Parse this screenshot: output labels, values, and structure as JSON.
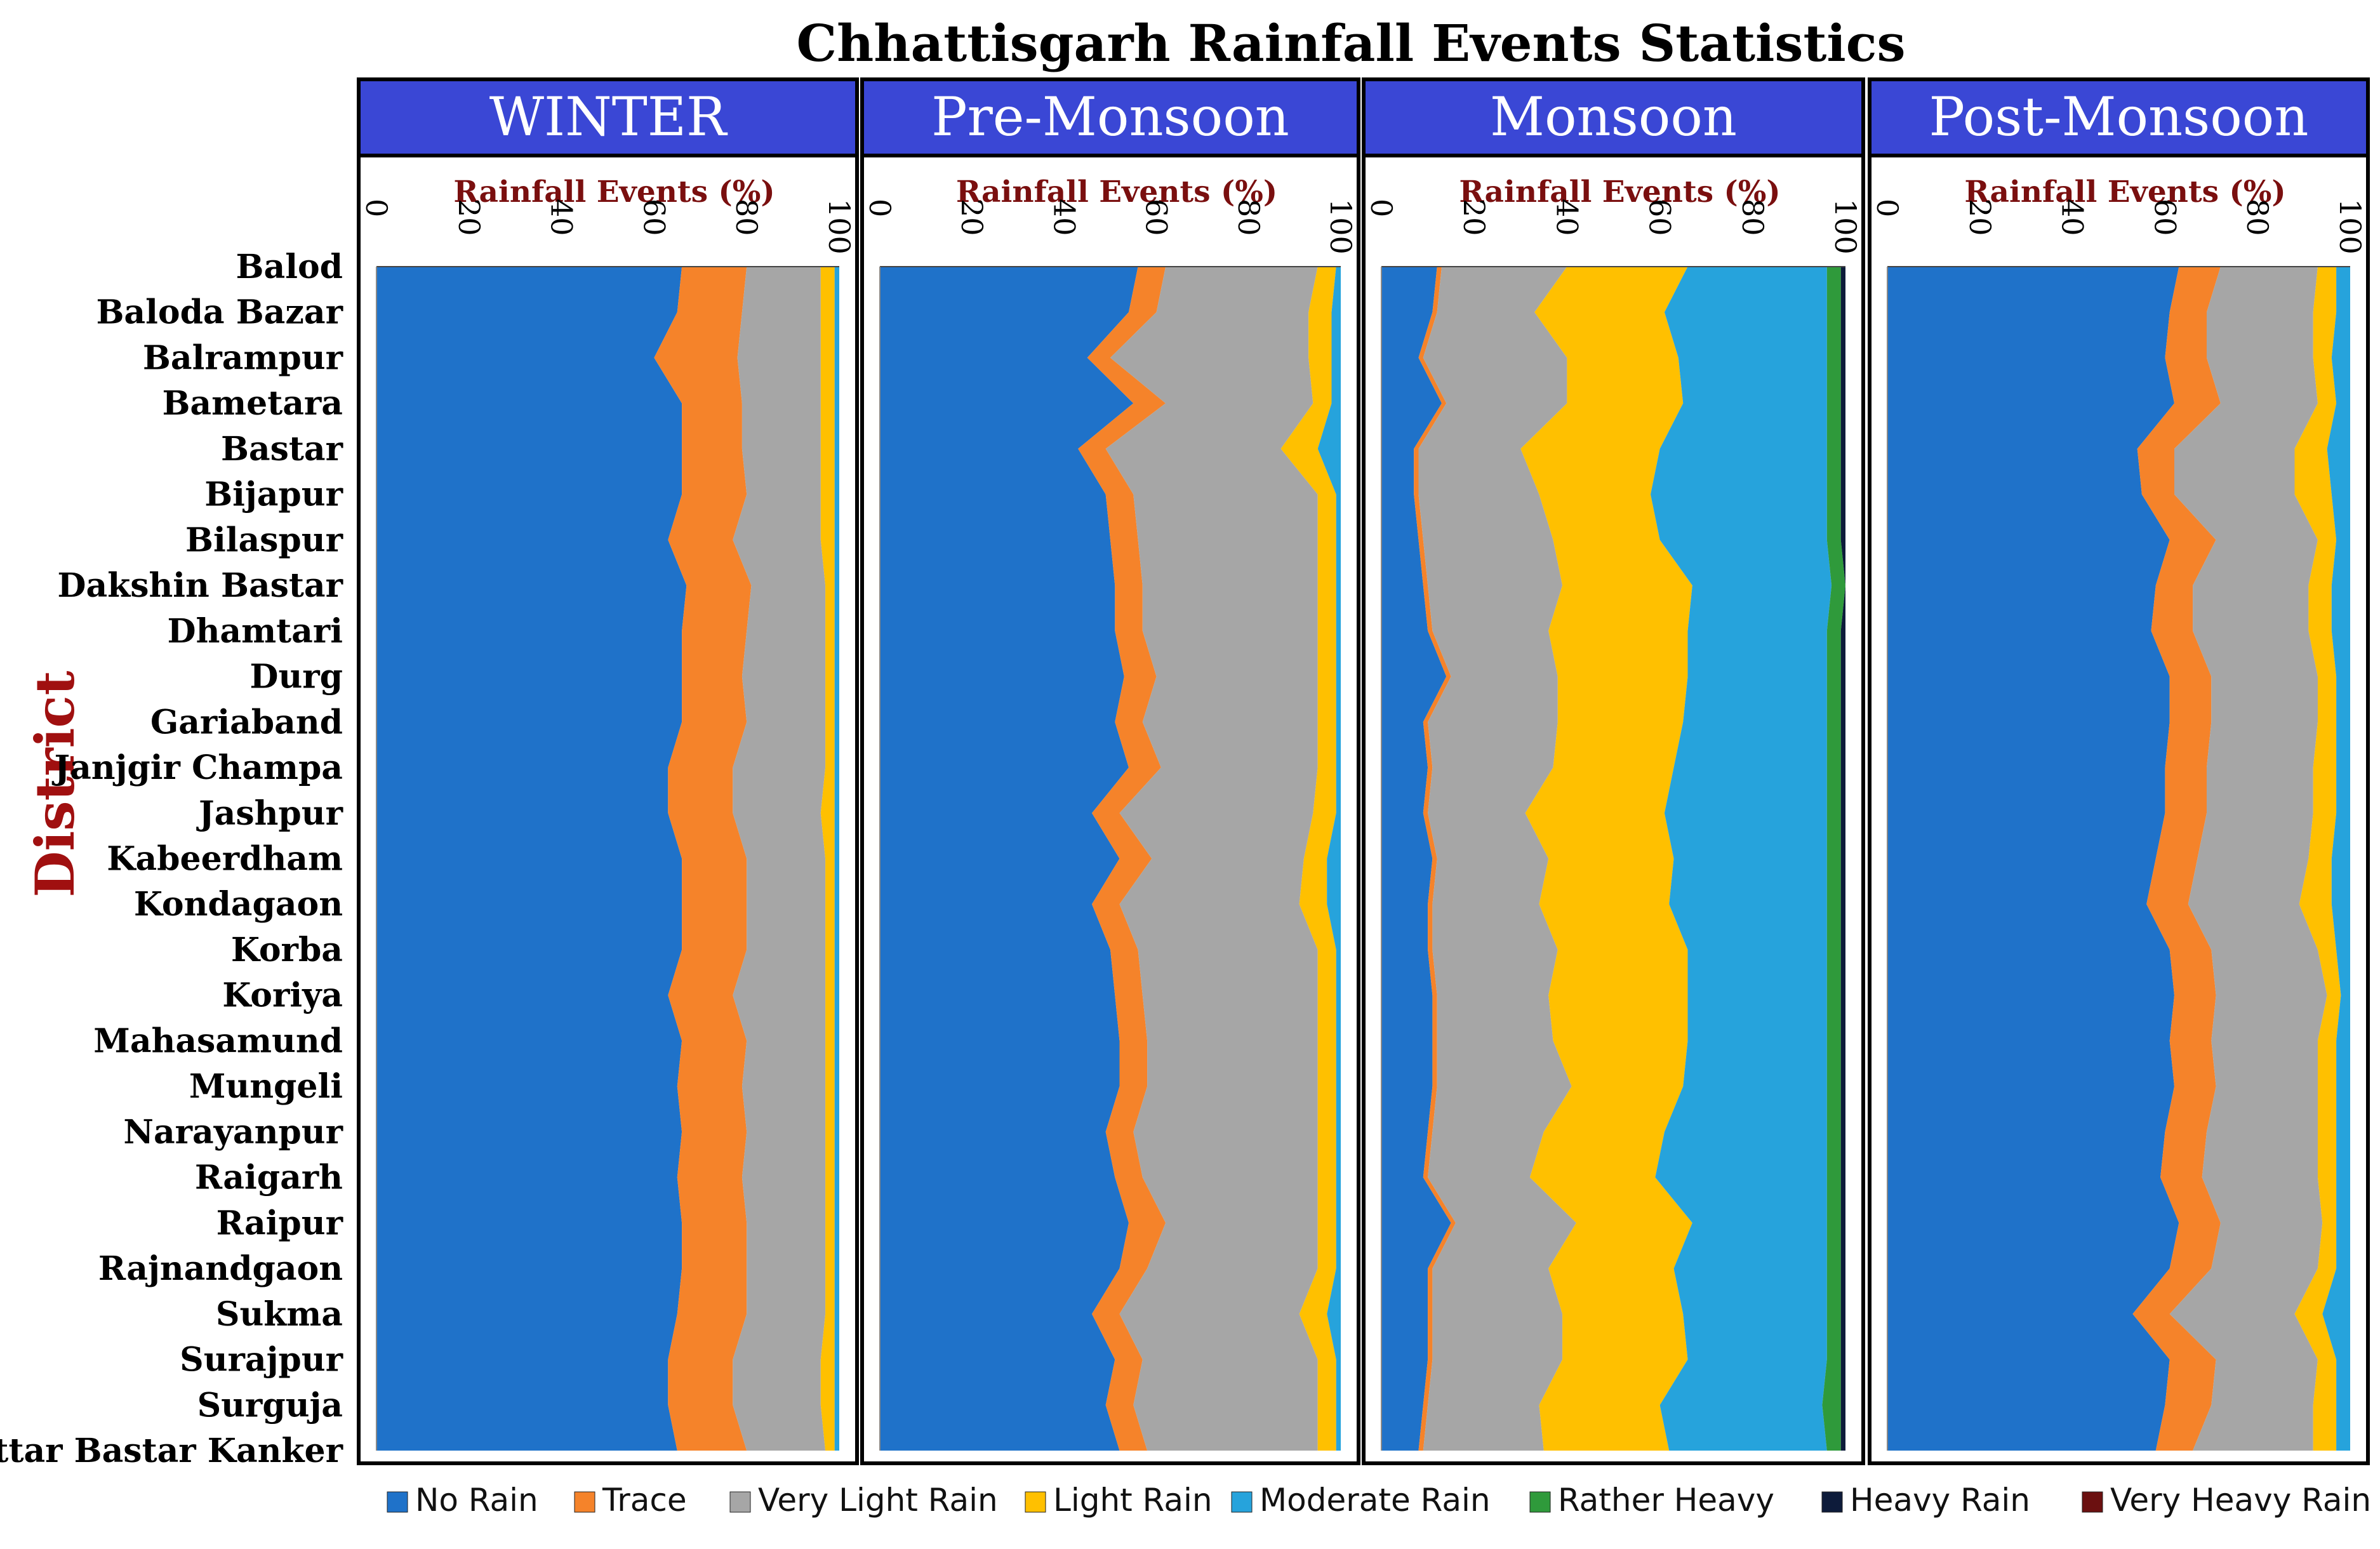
{
  "chart_data": {
    "type": "area",
    "orientation": "horizontal-stacked-100",
    "title": "Chhattisgarh Rainfall Events Statistics",
    "ylabel": "District",
    "xlabel": "Rainfall Events (%)",
    "xlim": [
      0,
      100
    ],
    "xticks": [
      "0",
      "20",
      "40",
      "60",
      "80",
      "100"
    ],
    "districts": [
      "Balod",
      "Baloda Bazar",
      "Balrampur",
      "Bametara",
      "Bastar",
      "Bijapur",
      "Bilaspur",
      "Dakshin Bastar",
      "Dhamtari",
      "Durg",
      "Gariaband",
      "Janjgir Champa",
      "Jashpur",
      "Kabeerdham",
      "Kondagaon",
      "Korba",
      "Koriya",
      "Mahasamund",
      "Mungeli",
      "Narayanpur",
      "Raigarh",
      "Raipur",
      "Rajnandgaon",
      "Sukma",
      "Surajpur",
      "Surguja",
      "Uttar Bastar Kanker"
    ],
    "categories": [
      {
        "name": "No Rain",
        "color": "#1f72c9"
      },
      {
        "name": "Trace",
        "color": "#f5832a"
      },
      {
        "name": "Very Light Rain",
        "color": "#a6a6a6"
      },
      {
        "name": "Light Rain",
        "color": "#ffc000"
      },
      {
        "name": "Moderate Rain",
        "color": "#26a3dc"
      },
      {
        "name": "Rather Heavy",
        "color": "#2f9a3b"
      },
      {
        "name": "Heavy Rain",
        "color": "#0d1b3a"
      },
      {
        "name": "Very Heavy Rain",
        "color": "#6b1010"
      }
    ],
    "panels": [
      {
        "season": "WINTER",
        "series": {
          "No Rain": [
            66,
            65,
            60,
            66,
            66,
            66,
            63,
            67,
            66,
            66,
            66,
            63,
            63,
            66,
            66,
            66,
            63,
            66,
            65,
            66,
            65,
            66,
            66,
            65,
            63,
            63,
            65
          ],
          "Trace": [
            14,
            14,
            18,
            13,
            13,
            14,
            14,
            14,
            14,
            13,
            14,
            14,
            14,
            14,
            14,
            14,
            14,
            14,
            14,
            14,
            14,
            14,
            14,
            15,
            14,
            14,
            15
          ],
          "Very Light Rain": [
            16,
            17,
            18,
            17,
            17,
            16,
            19,
            16,
            17,
            18,
            17,
            20,
            19,
            17,
            17,
            17,
            20,
            17,
            18,
            17,
            18,
            17,
            17,
            17,
            19,
            19,
            17
          ],
          "Light Rain": [
            3,
            3,
            3,
            3,
            3,
            3,
            3,
            2,
            2,
            2,
            2,
            2,
            3,
            2,
            2,
            2,
            2,
            2,
            2,
            2,
            2,
            2,
            2,
            2,
            3,
            3,
            2
          ],
          "Moderate Rain": [
            1,
            1,
            1,
            1,
            1,
            1,
            1,
            1,
            1,
            1,
            1,
            1,
            1,
            1,
            1,
            1,
            1,
            1,
            1,
            1,
            1,
            1,
            1,
            1,
            1,
            1,
            1
          ],
          "Rather Heavy": [
            0,
            0,
            0,
            0,
            0,
            0,
            0,
            0,
            0,
            0,
            0,
            0,
            0,
            0,
            0,
            0,
            0,
            0,
            0,
            0,
            0,
            0,
            0,
            0,
            0,
            0,
            0
          ],
          "Heavy Rain": [
            0,
            0,
            0,
            0,
            0,
            0,
            0,
            0,
            0,
            0,
            0,
            0,
            0,
            0,
            0,
            0,
            0,
            0,
            0,
            0,
            0,
            0,
            0,
            0,
            0,
            0,
            0
          ],
          "Very Heavy Rain": [
            0,
            0,
            0,
            0,
            0,
            0,
            0,
            0,
            0,
            0,
            0,
            0,
            0,
            0,
            0,
            0,
            0,
            0,
            0,
            0,
            0,
            0,
            0,
            0,
            0,
            0,
            0
          ]
        }
      },
      {
        "season": "Pre-Monsoon",
        "series": {
          "No Rain": [
            56,
            54,
            45,
            55,
            43,
            49,
            50,
            51,
            51,
            53,
            51,
            54,
            46,
            52,
            46,
            50,
            51,
            52,
            52,
            49,
            51,
            54,
            52,
            46,
            51,
            49,
            52
          ],
          "Trace": [
            6,
            6,
            5,
            7,
            6,
            6,
            6,
            6,
            6,
            7,
            6,
            7,
            6,
            7,
            6,
            6,
            6,
            6,
            6,
            6,
            6,
            8,
            6,
            6,
            6,
            6,
            6
          ],
          "Very Light Rain": [
            33,
            33,
            43,
            32,
            38,
            40,
            39,
            38,
            38,
            35,
            38,
            34,
            42,
            33,
            39,
            39,
            38,
            37,
            37,
            40,
            38,
            33,
            37,
            39,
            38,
            40,
            37
          ],
          "Light Rain": [
            4,
            5,
            5,
            4,
            8,
            4,
            4,
            4,
            4,
            4,
            4,
            4,
            5,
            5,
            6,
            4,
            4,
            4,
            4,
            4,
            4,
            4,
            4,
            6,
            4,
            4,
            4
          ],
          "Moderate Rain": [
            1,
            2,
            2,
            2,
            5,
            1,
            1,
            1,
            1,
            1,
            1,
            1,
            1,
            3,
            3,
            1,
            1,
            1,
            1,
            1,
            1,
            1,
            1,
            3,
            1,
            1,
            1
          ],
          "Rather Heavy": [
            0,
            0,
            0,
            0,
            0,
            0,
            0,
            0,
            0,
            0,
            0,
            0,
            0,
            0,
            0,
            0,
            0,
            0,
            0,
            0,
            0,
            0,
            0,
            0,
            0,
            0,
            0
          ],
          "Heavy Rain": [
            0,
            0,
            0,
            0,
            0,
            0,
            0,
            0,
            0,
            0,
            0,
            0,
            0,
            0,
            0,
            0,
            0,
            0,
            0,
            0,
            0,
            0,
            0,
            0,
            0,
            0,
            0
          ],
          "Very Heavy Rain": [
            0,
            0,
            0,
            0,
            0,
            0,
            0,
            0,
            0,
            0,
            0,
            0,
            0,
            0,
            0,
            0,
            0,
            0,
            0,
            0,
            0,
            0,
            0,
            0,
            0,
            0,
            0
          ]
        }
      },
      {
        "season": "Monsoon",
        "series": {
          "No Rain": [
            12,
            11,
            8,
            13,
            7,
            7,
            8,
            9,
            10,
            14,
            9,
            10,
            9,
            11,
            10,
            10,
            11,
            11,
            11,
            10,
            9,
            15,
            10,
            10,
            10,
            9,
            8
          ],
          "Trace": [
            1,
            1,
            1,
            1,
            1,
            1,
            1,
            1,
            1,
            1,
            1,
            1,
            1,
            1,
            1,
            1,
            1,
            1,
            1,
            1,
            1,
            1,
            1,
            1,
            1,
            1,
            1
          ],
          "Very Light Rain": [
            27,
            21,
            31,
            26,
            22,
            26,
            28,
            29,
            25,
            23,
            28,
            26,
            21,
            24,
            23,
            27,
            24,
            25,
            29,
            24,
            22,
            26,
            25,
            28,
            28,
            24,
            26
          ],
          "Light Rain": [
            26,
            28,
            24,
            25,
            30,
            24,
            23,
            28,
            30,
            28,
            27,
            26,
            30,
            27,
            28,
            28,
            30,
            29,
            24,
            26,
            27,
            25,
            27,
            26,
            27,
            26,
            27
          ],
          "Moderate Rain": [
            30,
            35,
            32,
            31,
            36,
            38,
            36,
            30,
            30,
            30,
            31,
            33,
            35,
            33,
            34,
            30,
            30,
            30,
            31,
            35,
            37,
            29,
            33,
            31,
            30,
            35,
            34
          ],
          "Rather Heavy": [
            3,
            3,
            3,
            3,
            3,
            3,
            3,
            3,
            3,
            3,
            3,
            3,
            3,
            3,
            3,
            3,
            3,
            3,
            3,
            3,
            3,
            3,
            3,
            3,
            3,
            4,
            3
          ],
          "Heavy Rain": [
            1,
            1,
            1,
            1,
            1,
            1,
            1,
            0,
            1,
            1,
            1,
            1,
            1,
            1,
            1,
            1,
            1,
            1,
            1,
            1,
            1,
            1,
            1,
            1,
            1,
            1,
            1
          ],
          "Very Heavy Rain": [
            0,
            0,
            0,
            0,
            0,
            0,
            0,
            0,
            0,
            0,
            0,
            0,
            0,
            0,
            0,
            0,
            0,
            0,
            0,
            0,
            0,
            0,
            0,
            0,
            0,
            0,
            0
          ]
        }
      },
      {
        "season": "Post-Monsoon",
        "series": {
          "No Rain": [
            63,
            61,
            60,
            62,
            54,
            55,
            61,
            58,
            57,
            61,
            61,
            60,
            60,
            58,
            56,
            61,
            62,
            61,
            62,
            60,
            59,
            63,
            61,
            53,
            61,
            60,
            58
          ],
          "Trace": [
            9,
            8,
            9,
            10,
            8,
            7,
            10,
            8,
            9,
            9,
            9,
            9,
            9,
            9,
            9,
            9,
            9,
            9,
            9,
            9,
            9,
            9,
            9,
            8,
            10,
            10,
            8
          ],
          "Very Light Rain": [
            21,
            23,
            23,
            21,
            26,
            26,
            22,
            25,
            25,
            23,
            23,
            23,
            23,
            24,
            24,
            23,
            24,
            23,
            22,
            24,
            25,
            22,
            23,
            27,
            22,
            22,
            26
          ],
          "Light Rain": [
            4,
            5,
            4,
            4,
            7,
            8,
            4,
            5,
            5,
            4,
            4,
            5,
            5,
            5,
            7,
            4,
            3,
            4,
            4,
            4,
            4,
            3,
            4,
            6,
            4,
            5,
            5
          ],
          "Moderate Rain": [
            3,
            3,
            4,
            3,
            5,
            4,
            3,
            4,
            4,
            3,
            3,
            3,
            3,
            4,
            4,
            3,
            2,
            3,
            3,
            3,
            3,
            3,
            3,
            6,
            3,
            3,
            3
          ],
          "Rather Heavy": [
            0,
            0,
            0,
            0,
            0,
            0,
            0,
            0,
            0,
            0,
            0,
            0,
            0,
            0,
            0,
            0,
            0,
            0,
            0,
            0,
            0,
            0,
            0,
            0,
            0,
            0,
            0
          ],
          "Heavy Rain": [
            0,
            0,
            0,
            0,
            0,
            0,
            0,
            0,
            0,
            0,
            0,
            0,
            0,
            0,
            0,
            0,
            0,
            0,
            0,
            0,
            0,
            0,
            0,
            0,
            0,
            0,
            0
          ],
          "Very Heavy Rain": [
            0,
            0,
            0,
            0,
            0,
            0,
            0,
            0,
            0,
            0,
            0,
            0,
            0,
            0,
            0,
            0,
            0,
            0,
            0,
            0,
            0,
            0,
            0,
            0,
            0,
            0,
            0
          ]
        }
      }
    ],
    "header_color": "#3a47d5"
  }
}
